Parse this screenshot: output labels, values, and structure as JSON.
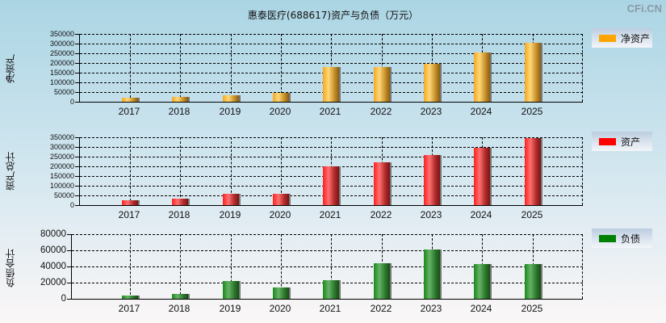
{
  "title": "惠泰医疗(688617)资产与负债（万元）",
  "brand": "CFi.CN",
  "panels": [
    {
      "ylabel": "净资产",
      "legend": "净资产",
      "legend_color": "#ffa500"
    },
    {
      "ylabel": "资产总计",
      "legend": "资产",
      "legend_color": "#ff0000"
    },
    {
      "ylabel": "负债合计",
      "legend": "负债",
      "legend_color": "#008000"
    }
  ],
  "chart_data": [
    {
      "type": "bar",
      "title": "惠泰医疗(688617)资产与负债（万元）",
      "xlabel": "",
      "ylabel": "净资产",
      "categories": [
        "2017",
        "2018",
        "2019",
        "2020",
        "2021",
        "2022",
        "2023",
        "2024",
        "2025"
      ],
      "series": [
        {
          "name": "净资产",
          "color": "#ffa500",
          "values": [
            20000,
            25000,
            33000,
            46000,
            180000,
            180000,
            197000,
            255000,
            305000
          ]
        }
      ],
      "ylim": [
        0,
        350000
      ],
      "yticks": [
        "0",
        "50000",
        "100000",
        "150000",
        "200000",
        "250000",
        "300000",
        "350000"
      ],
      "grid": true,
      "legend_position": "right"
    },
    {
      "type": "bar",
      "xlabel": "",
      "ylabel": "资产总计",
      "categories": [
        "2017",
        "2018",
        "2019",
        "2020",
        "2021",
        "2022",
        "2023",
        "2024",
        "2025"
      ],
      "series": [
        {
          "name": "资产",
          "color": "#ff0000",
          "values": [
            25000,
            33000,
            60000,
            60000,
            200000,
            222000,
            260000,
            297000,
            347000
          ]
        }
      ],
      "ylim": [
        0,
        350000
      ],
      "yticks": [
        "0",
        "50000",
        "100000",
        "150000",
        "200000",
        "250000",
        "300000",
        "350000"
      ],
      "grid": true,
      "legend_position": "right"
    },
    {
      "type": "bar",
      "xlabel": "",
      "ylabel": "负债合计",
      "categories": [
        "2017",
        "2018",
        "2019",
        "2020",
        "2021",
        "2022",
        "2023",
        "2024",
        "2025"
      ],
      "series": [
        {
          "name": "负债",
          "color": "#008000",
          "values": [
            4000,
            6000,
            22000,
            14000,
            23000,
            44000,
            61000,
            43000,
            43000
          ]
        }
      ],
      "ylim": [
        0,
        80000
      ],
      "yticks": [
        "0",
        "20000",
        "40000",
        "60000",
        "80000"
      ],
      "grid": true,
      "legend_position": "right"
    }
  ]
}
